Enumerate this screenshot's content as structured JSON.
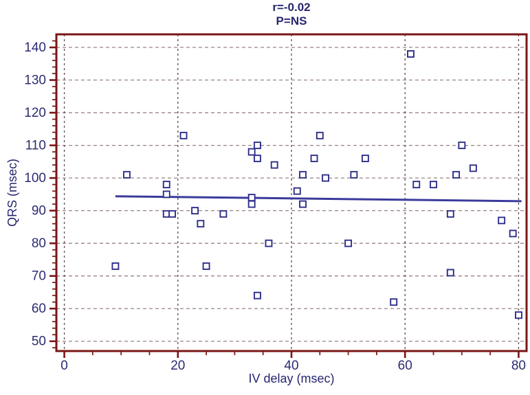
{
  "title_lines": [
    "r=-0.02",
    "P=NS"
  ],
  "chart_data": {
    "type": "scatter",
    "title": "r=-0.02 P=NS",
    "correlation": "r=-0.02",
    "significance": "P=NS",
    "xlabel": "IV delay (msec)",
    "ylabel": "QRS (msec)",
    "xlim": [
      -1.4,
      81.4
    ],
    "ylim": [
      47,
      144
    ],
    "x_ticks": [
      0,
      20,
      40,
      60,
      80
    ],
    "y_ticks": [
      50,
      60,
      70,
      80,
      90,
      100,
      110,
      120,
      130,
      140
    ],
    "x_minor_range": [
      0,
      80,
      5
    ],
    "y_minor_range": [
      48,
      142,
      2
    ],
    "grid": "dashed lines at every major tick, both axes",
    "legend": "none",
    "marker_shape": "open-square",
    "points": [
      [
        9,
        73
      ],
      [
        11,
        101
      ],
      [
        18,
        98
      ],
      [
        18,
        95
      ],
      [
        18,
        89
      ],
      [
        19,
        89
      ],
      [
        21,
        113
      ],
      [
        23,
        90
      ],
      [
        24,
        86
      ],
      [
        25,
        73
      ],
      [
        28,
        89
      ],
      [
        33,
        108
      ],
      [
        33,
        94
      ],
      [
        33,
        92
      ],
      [
        34,
        110
      ],
      [
        34,
        106
      ],
      [
        34,
        64
      ],
      [
        36,
        80
      ],
      [
        37,
        104
      ],
      [
        41,
        96
      ],
      [
        42,
        101
      ],
      [
        42,
        92
      ],
      [
        44,
        106
      ],
      [
        45,
        113
      ],
      [
        46,
        100
      ],
      [
        50,
        80
      ],
      [
        51,
        101
      ],
      [
        53,
        106
      ],
      [
        58,
        62
      ],
      [
        61,
        138
      ],
      [
        62,
        98
      ],
      [
        65,
        98
      ],
      [
        68,
        89
      ],
      [
        68,
        71
      ],
      [
        69,
        101
      ],
      [
        70,
        110
      ],
      [
        72,
        103
      ],
      [
        77,
        87
      ],
      [
        79,
        83
      ],
      [
        80,
        58
      ]
    ],
    "trend_line": {
      "x_start": 9,
      "y_start": 94.4,
      "x_end": 80.5,
      "y_end": 92.9
    }
  },
  "colors": {
    "background": "#ffffff",
    "frame": "#7a1616",
    "grid_horizontal": "#9a8282",
    "grid_vertical": "#5f4646",
    "marker": "#2e2e8a",
    "marker_fill": "#ffffff",
    "trend_line": "#3a3a9c",
    "text": "#2b2b72"
  }
}
